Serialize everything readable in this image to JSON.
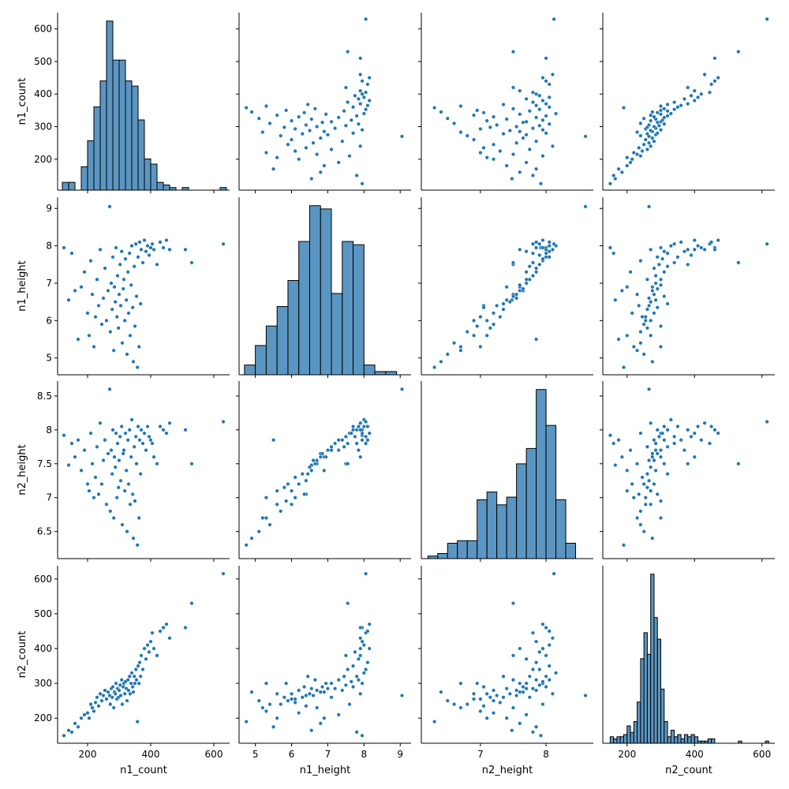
{
  "figure": {
    "type": "pairplot",
    "variables": [
      "n1_count",
      "n1_height",
      "n2_height",
      "n2_count"
    ],
    "marker_color": "#1f77b4",
    "hist_fill": "#5b96c2",
    "hist_edge": "#000000"
  },
  "chart_data": {
    "type": "scatter",
    "description_variables": [
      "n1_count",
      "n1_height",
      "n2_height",
      "n2_count"
    ],
    "axes": {
      "n1_count": {
        "label": "n1_count",
        "ticks": [
          200,
          300,
          400,
          500,
          600
        ],
        "lim": [
          105,
          650
        ],
        "x_ticks": [
          200,
          400,
          600
        ]
      },
      "n1_height": {
        "label": "n1_height",
        "ticks": [
          5,
          6,
          7,
          8,
          9
        ],
        "lim": [
          4.55,
          9.3
        ]
      },
      "n2_height": {
        "label": "n2_height",
        "ticks": [
          6.5,
          7.0,
          7.5,
          8.0,
          8.5
        ],
        "lim": [
          6.1,
          8.72
        ],
        "x_ticks": [
          7,
          8
        ],
        "x_lim": [
          6.1,
          8.72
        ]
      },
      "n2_count": {
        "label": "n2_count",
        "ticks": [
          200,
          300,
          400,
          500,
          600
        ],
        "lim": [
          128,
          638
        ],
        "x_ticks": [
          200,
          400,
          600
        ]
      }
    },
    "histograms": {
      "n1_count": {
        "edges": [
          120,
          140,
          160,
          180,
          200,
          220,
          240,
          260,
          280,
          300,
          320,
          340,
          360,
          380,
          400,
          420,
          440,
          460,
          480,
          500,
          520,
          540,
          560,
          580,
          600,
          620,
          640
        ],
        "counts": [
          3,
          3,
          0,
          9,
          19,
          32,
          42,
          65,
          50,
          50,
          42,
          40,
          27,
          12,
          10,
          3,
          2,
          1,
          0,
          1,
          0,
          0,
          0,
          0,
          0,
          1
        ]
      },
      "n1_height": {
        "edges": [
          4.7,
          5.0,
          5.3,
          5.6,
          5.9,
          6.2,
          6.5,
          6.8,
          7.1,
          7.4,
          7.7,
          8.0,
          8.3,
          8.6,
          8.9,
          9.2
        ],
        "counts": [
          3,
          9,
          15,
          21,
          29,
          41,
          52,
          51,
          25,
          41,
          40,
          3,
          1,
          1,
          0
        ]
      },
      "n2_height": {
        "edges": [
          6.2,
          6.35,
          6.5,
          6.65,
          6.8,
          6.95,
          7.1,
          7.25,
          7.4,
          7.55,
          7.7,
          7.85,
          8.0,
          8.15,
          8.3,
          8.45,
          8.6
        ],
        "counts": [
          1,
          2,
          6,
          7,
          7,
          23,
          26,
          21,
          24,
          37,
          43,
          66,
          52,
          23,
          6,
          0,
          2
        ]
      },
      "n2_count": {
        "edges": [
          150,
          160,
          170,
          180,
          190,
          200,
          210,
          220,
          230,
          240,
          250,
          260,
          270,
          280,
          290,
          300,
          310,
          320,
          330,
          340,
          350,
          360,
          370,
          380,
          390,
          400,
          410,
          420,
          430,
          440,
          450,
          460,
          470,
          480,
          490,
          500,
          510,
          520,
          530,
          540,
          550,
          560,
          570,
          580,
          590,
          600,
          610,
          620
        ],
        "counts": [
          3,
          2,
          3,
          3,
          4,
          8,
          5,
          10,
          19,
          39,
          51,
          41,
          78,
          58,
          48,
          25,
          10,
          3,
          6,
          3,
          4,
          2,
          4,
          3,
          4,
          3,
          1,
          1,
          1,
          2,
          2,
          0,
          0,
          0,
          0,
          0,
          0,
          0,
          1,
          0,
          0,
          0,
          0,
          0,
          0,
          0,
          1
        ]
      }
    },
    "points": [
      [
        125,
        7.95,
        7.92,
        150
      ],
      [
        140,
        6.55,
        7.48,
        165
      ],
      [
        150,
        7.8,
        7.8,
        160
      ],
      [
        160,
        6.8,
        7.6,
        185
      ],
      [
        170,
        5.5,
        7.85,
        175
      ],
      [
        180,
        6.9,
        7.4,
        200
      ],
      [
        190,
        7.3,
        7.7,
        210
      ],
      [
        200,
        6.2,
        7.2,
        215
      ],
      [
        205,
        5.6,
        7.1,
        200
      ],
      [
        210,
        7.6,
        7.95,
        240
      ],
      [
        215,
        6.7,
        7.5,
        230
      ],
      [
        220,
        5.3,
        7.0,
        220
      ],
      [
        225,
        6.1,
        7.3,
        245
      ],
      [
        230,
        7.1,
        7.75,
        260
      ],
      [
        235,
        6.4,
        7.05,
        235
      ],
      [
        240,
        7.9,
        8.1,
        270
      ],
      [
        245,
        5.9,
        7.2,
        250
      ],
      [
        250,
        6.6,
        7.55,
        265
      ],
      [
        255,
        7.4,
        7.85,
        280
      ],
      [
        260,
        6.0,
        6.9,
        255
      ],
      [
        265,
        6.8,
        7.65,
        275
      ],
      [
        270,
        9.05,
        8.6,
        265
      ],
      [
        272,
        5.7,
        6.8,
        240
      ],
      [
        275,
        7.0,
        7.7,
        285
      ],
      [
        278,
        6.3,
        7.35,
        260
      ],
      [
        280,
        7.7,
        8.0,
        290
      ],
      [
        283,
        5.2,
        6.7,
        230
      ],
      [
        285,
        6.9,
        7.6,
        275
      ],
      [
        288,
        6.5,
        7.45,
        270
      ],
      [
        290,
        7.95,
        7.95,
        300
      ],
      [
        293,
        6.1,
        7.0,
        255
      ],
      [
        295,
        7.2,
        7.8,
        285
      ],
      [
        298,
        5.8,
        7.15,
        260
      ],
      [
        300,
        6.7,
        7.55,
        280
      ],
      [
        303,
        7.5,
        7.9,
        295
      ],
      [
        305,
        6.4,
        7.25,
        265
      ],
      [
        308,
        7.85,
        8.05,
        310
      ],
      [
        310,
        5.4,
        6.6,
        240
      ],
      [
        313,
        6.85,
        7.65,
        290
      ],
      [
        315,
        7.1,
        7.7,
        300
      ],
      [
        318,
        6.0,
        7.1,
        270
      ],
      [
        320,
        7.65,
        7.95,
        305
      ],
      [
        323,
        6.55,
        7.4,
        285
      ],
      [
        325,
        5.1,
        6.5,
        250
      ],
      [
        328,
        7.3,
        7.85,
        310
      ],
      [
        330,
        6.2,
        7.2,
        280
      ],
      [
        333,
        7.8,
        8.0,
        320
      ],
      [
        335,
        5.6,
        6.9,
        270
      ],
      [
        338,
        6.95,
        7.6,
        300
      ],
      [
        340,
        8.0,
        8.15,
        330
      ],
      [
        343,
        6.35,
        7.05,
        290
      ],
      [
        345,
        4.9,
        6.4,
        275
      ],
      [
        348,
        7.45,
        7.75,
        320
      ],
      [
        350,
        5.85,
        6.95,
        300
      ],
      [
        353,
        8.05,
        7.9,
        340
      ],
      [
        355,
        6.65,
        7.5,
        310
      ],
      [
        358,
        4.75,
        6.3,
        190
      ],
      [
        360,
        7.7,
        8.05,
        350
      ],
      [
        363,
        5.3,
        6.7,
        300
      ],
      [
        365,
        8.1,
        7.85,
        360
      ],
      [
        368,
        6.45,
        7.35,
        320
      ],
      [
        370,
        7.9,
        8.0,
        380
      ],
      [
        375,
        7.55,
        7.8,
        340
      ],
      [
        380,
        8.15,
        7.95,
        400
      ],
      [
        385,
        7.85,
        7.7,
        370
      ],
      [
        390,
        8.0,
        8.05,
        410
      ],
      [
        395,
        7.75,
        7.9,
        390
      ],
      [
        400,
        7.95,
        7.85,
        420
      ],
      [
        405,
        8.05,
        7.8,
        445
      ],
      [
        410,
        7.9,
        7.6,
        400
      ],
      [
        420,
        7.5,
        7.5,
        380
      ],
      [
        430,
        8.1,
        8.05,
        450
      ],
      [
        440,
        7.95,
        8.0,
        460
      ],
      [
        450,
        8.15,
        7.95,
        470
      ],
      [
        460,
        7.9,
        8.1,
        430
      ],
      [
        510,
        7.9,
        8.0,
        460
      ],
      [
        530,
        7.55,
        7.5,
        530
      ],
      [
        630,
        8.05,
        8.12,
        615
      ]
    ]
  }
}
